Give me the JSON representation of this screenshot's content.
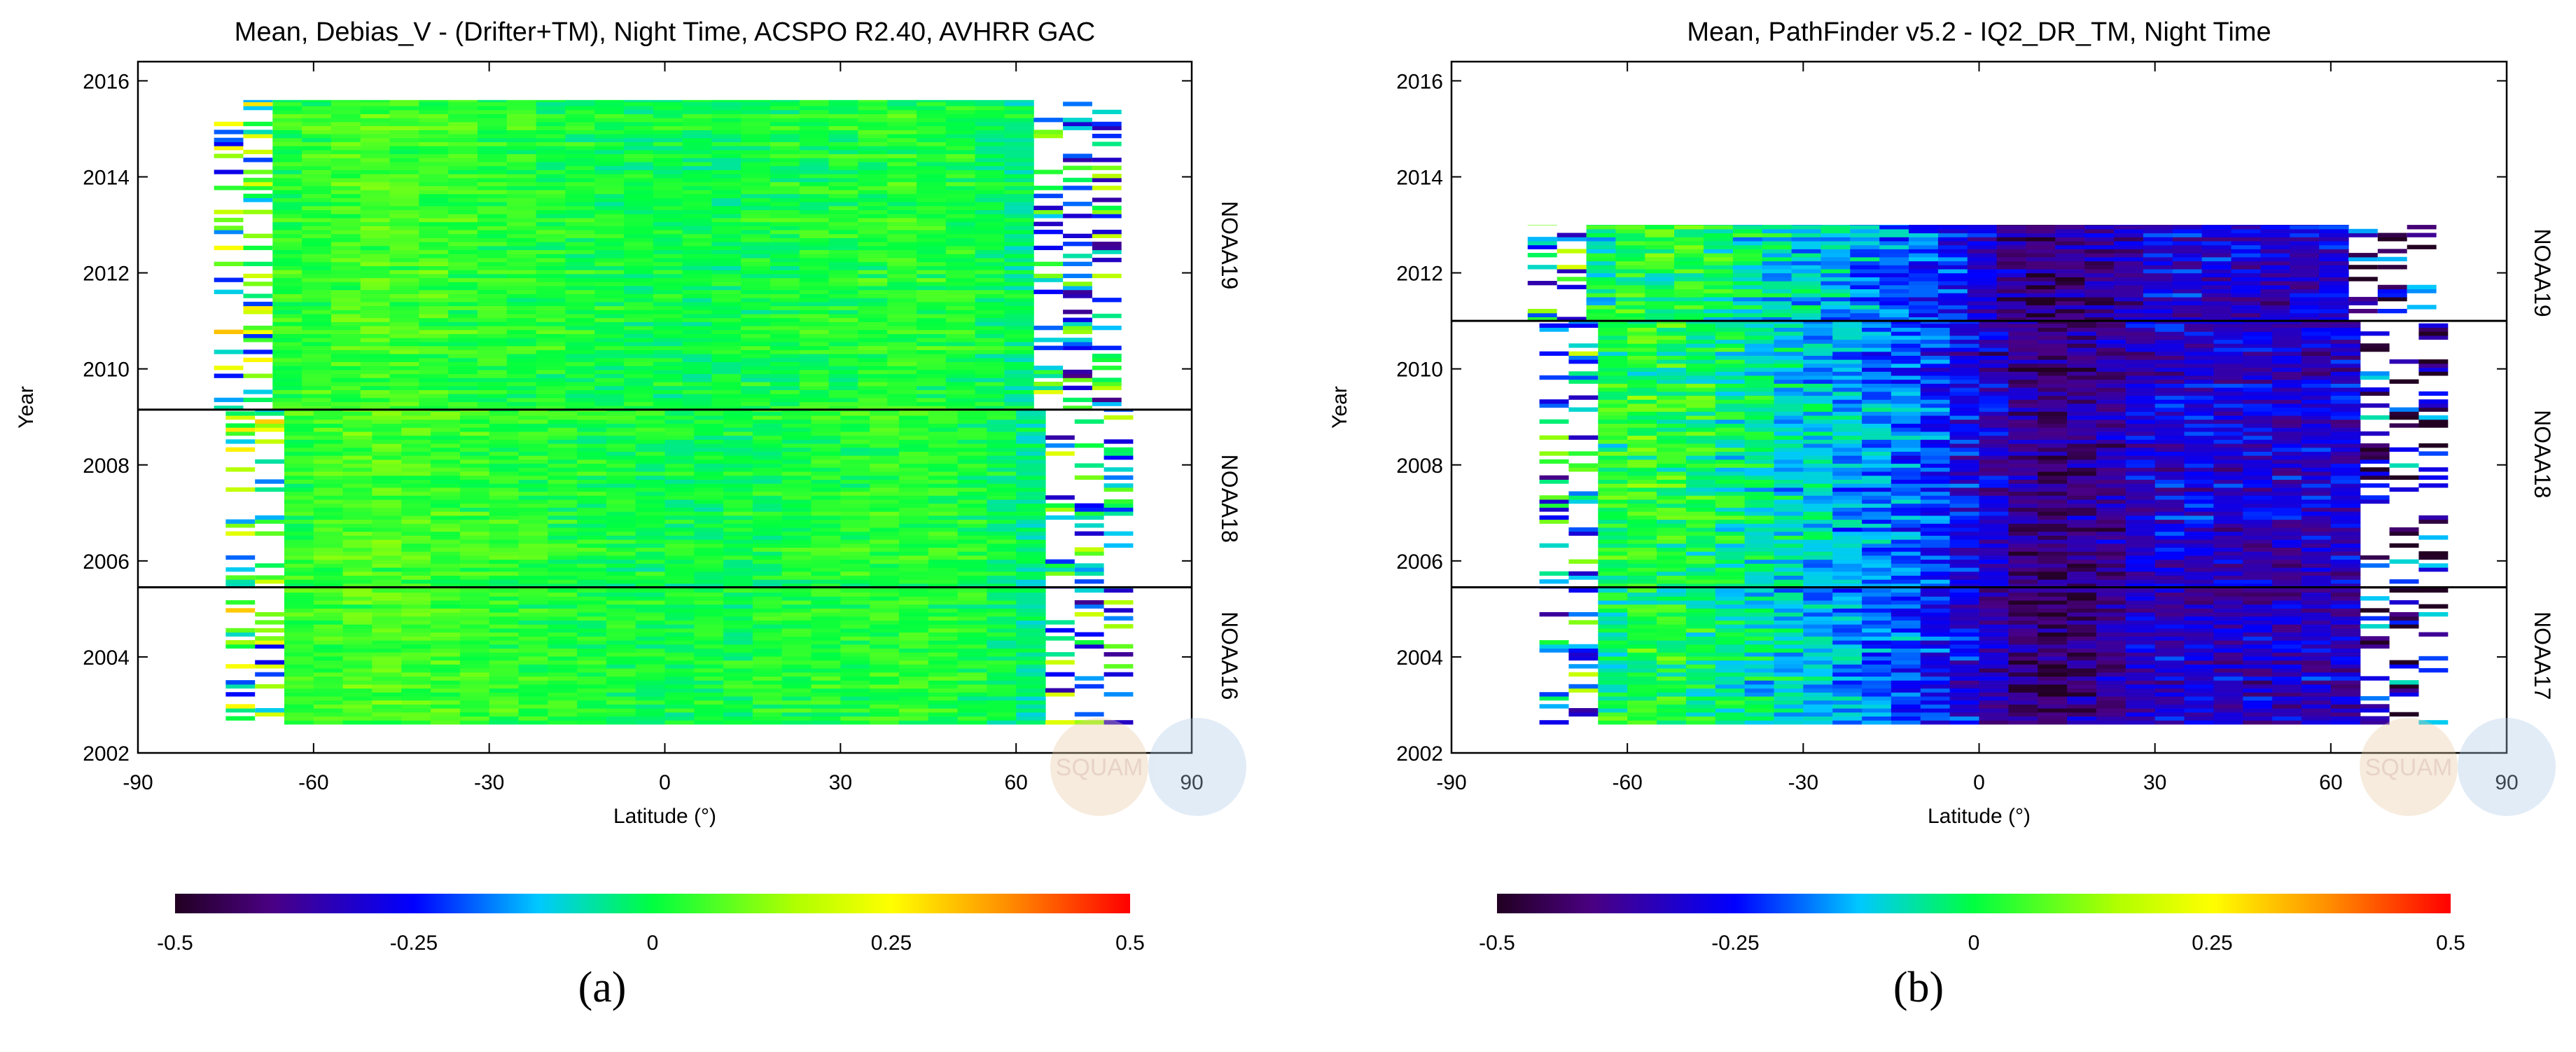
{
  "panels": [
    {
      "id": "a",
      "title": "Mean, Debias_V - (Drifter+TM), Night Time, ACSPO R2.40,  AVHRR GAC",
      "xlabel": "Latitude (°)",
      "ylabel": "Year",
      "sublabel": "(a)",
      "watermark": "SQUAM",
      "colorbar_ticks": [
        "-0.5",
        "-0.25",
        "0",
        "0.25",
        "0.5"
      ],
      "satellites": [
        {
          "name": "NOAA19",
          "from": 2009.15,
          "to": 2016.0
        },
        {
          "name": "NOAA18",
          "from": 2005.45,
          "to": 2009.15
        },
        {
          "name": "NOAA16",
          "from": 2002.6,
          "to": 2005.45
        }
      ],
      "dividers": [
        2009.15,
        2005.45
      ]
    },
    {
      "id": "b",
      "title": "Mean, PathFinder v5.2 - IQ2_DR_TM, Night Time",
      "xlabel": "Latitude (°)",
      "ylabel": "Year",
      "sublabel": "(b)",
      "watermark": "SQUAM",
      "colorbar_ticks": [
        "-0.5",
        "-0.25",
        "0",
        "0.25",
        "0.5"
      ],
      "satellites": [
        {
          "name": "NOAA19",
          "from": 2011.0,
          "to": 2013.0
        },
        {
          "name": "NOAA18",
          "from": 2005.45,
          "to": 2011.0
        },
        {
          "name": "NOAA17",
          "from": 2002.6,
          "to": 2005.45
        }
      ],
      "dividers": [
        2011.0,
        2005.45
      ]
    }
  ],
  "chart_data": [
    {
      "type": "heatmap",
      "title": "Mean, Debias_V - (Drifter+TM), Night Time, ACSPO R2.40,  AVHRR GAC",
      "xlabel": "Latitude (°)",
      "ylabel": "Year",
      "xlim": [
        -90,
        90
      ],
      "ylim": [
        2002,
        2016.4
      ],
      "xticks": [
        -90,
        -60,
        -30,
        0,
        30,
        60,
        90
      ],
      "yticks": [
        2002,
        2004,
        2006,
        2008,
        2010,
        2012,
        2014,
        2016
      ],
      "colorbar": {
        "min": -0.5,
        "max": 0.5,
        "ticks": [
          -0.5,
          -0.25,
          0,
          0.25,
          0.5
        ]
      },
      "lat_bin_width": 5,
      "row_step_years": 0.0833,
      "coverage": [
        {
          "t0": 2002.6,
          "t1": 2005.45,
          "lat_min": -65,
          "lat_max": 65
        },
        {
          "t0": 2005.45,
          "t1": 2009.15,
          "lat_min": -65,
          "lat_max": 65
        },
        {
          "t0": 2009.15,
          "t1": 2015.6,
          "lat_min": -67,
          "lat_max": 63
        }
      ],
      "bias_profile": {
        "lat": [
          -70,
          -60,
          -50,
          -40,
          -30,
          -20,
          -10,
          0,
          10,
          20,
          30,
          40,
          50,
          60,
          70,
          80
        ],
        "mean": [
          0.02,
          0.04,
          0.06,
          0.05,
          0.03,
          0.02,
          0.01,
          0.0,
          0.0,
          0.01,
          0.02,
          0.03,
          0.02,
          -0.02,
          -0.1,
          -0.12
        ]
      },
      "noise": 0.05,
      "edge_noise": 0.3
    },
    {
      "type": "heatmap",
      "title": "Mean, PathFinder v5.2 - IQ2_DR_TM, Night Time",
      "xlabel": "Latitude (°)",
      "ylabel": "Year",
      "xlim": [
        -90,
        90
      ],
      "ylim": [
        2002,
        2016.4
      ],
      "xticks": [
        -90,
        -60,
        -30,
        0,
        30,
        60,
        90
      ],
      "yticks": [
        2002,
        2004,
        2006,
        2008,
        2010,
        2012,
        2014,
        2016
      ],
      "colorbar": {
        "min": -0.5,
        "max": 0.5,
        "ticks": [
          -0.5,
          -0.25,
          0,
          0.25,
          0.5
        ]
      },
      "lat_bin_width": 5,
      "row_step_years": 0.0833,
      "coverage": [
        {
          "t0": 2002.6,
          "t1": 2005.45,
          "lat_min": -65,
          "lat_max": 65
        },
        {
          "t0": 2005.45,
          "t1": 2011.0,
          "lat_min": -65,
          "lat_max": 65
        },
        {
          "t0": 2011.0,
          "t1": 2013.0,
          "lat_min": -67,
          "lat_max": 63
        }
      ],
      "bias_profile": {
        "lat": [
          -70,
          -60,
          -50,
          -40,
          -30,
          -20,
          -10,
          0,
          10,
          20,
          30,
          40,
          50,
          60,
          70,
          80
        ],
        "mean": [
          -0.1,
          0.02,
          0.01,
          -0.05,
          -0.1,
          -0.15,
          -0.2,
          -0.3,
          -0.42,
          -0.38,
          -0.3,
          -0.3,
          -0.32,
          -0.3,
          -0.35,
          -0.4
        ]
      },
      "noise": 0.09,
      "edge_noise": 0.3
    }
  ]
}
